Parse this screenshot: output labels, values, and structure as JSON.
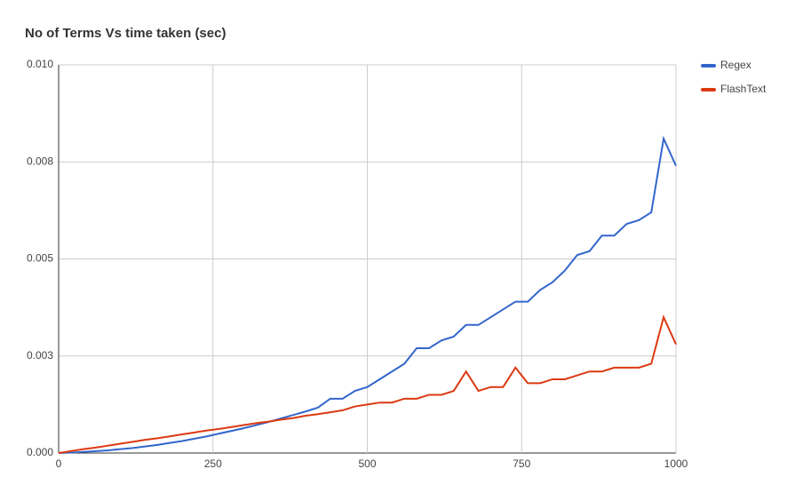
{
  "chart_data": {
    "type": "line",
    "title": "No of Terms Vs time taken (sec)",
    "x": [
      0,
      20,
      40,
      60,
      80,
      100,
      120,
      140,
      160,
      180,
      200,
      220,
      240,
      260,
      280,
      300,
      320,
      340,
      360,
      380,
      400,
      420,
      440,
      460,
      480,
      500,
      520,
      540,
      560,
      580,
      600,
      620,
      640,
      660,
      680,
      700,
      720,
      740,
      760,
      780,
      800,
      820,
      840,
      860,
      880,
      900,
      920,
      940,
      960,
      980,
      1000
    ],
    "series": [
      {
        "name": "Regex",
        "color": "#3366cc",
        "values": [
          0,
          1e-05,
          3e-05,
          5e-05,
          7e-05,
          0.0001,
          0.00013,
          0.00017,
          0.00021,
          0.00026,
          0.00031,
          0.00037,
          0.00043,
          0.0005,
          0.00057,
          0.00064,
          0.00072,
          0.0008,
          0.00089,
          0.00098,
          0.00107,
          0.00117,
          0.0014,
          0.0014,
          0.0016,
          0.0017,
          0.0019,
          0.0021,
          0.0023,
          0.0027,
          0.0027,
          0.0029,
          0.003,
          0.0033,
          0.0033,
          0.0035,
          0.0037,
          0.0039,
          0.0039,
          0.0042,
          0.0044,
          0.0047,
          0.0051,
          0.0052,
          0.0056,
          0.0056,
          0.0059,
          0.006,
          0.0062,
          0.0081,
          0.0074
        ]
      },
      {
        "name": "FlashText",
        "color": "#dc3912",
        "values": [
          0,
          5e-05,
          0.0001,
          0.00014,
          0.00019,
          0.00024,
          0.00029,
          0.00034,
          0.00038,
          0.00043,
          0.00048,
          0.00053,
          0.00058,
          0.00062,
          0.00067,
          0.00072,
          0.00077,
          0.00081,
          0.00086,
          0.0009,
          0.00096,
          0.001,
          0.00105,
          0.0011,
          0.0012,
          0.00125,
          0.0013,
          0.0013,
          0.0014,
          0.0014,
          0.0015,
          0.0015,
          0.0016,
          0.0021,
          0.0016,
          0.0017,
          0.0017,
          0.0022,
          0.0018,
          0.0018,
          0.0019,
          0.0019,
          0.002,
          0.0021,
          0.0021,
          0.0022,
          0.0022,
          0.0022,
          0.0023,
          0.0035,
          0.0028
        ]
      }
    ],
    "xlim": [
      0,
      1000
    ],
    "xticks": [
      0,
      250,
      500,
      750,
      1000
    ],
    "ylim": [
      0,
      0.01
    ],
    "yticks": [
      {
        "value": 0,
        "label": "0.000"
      },
      {
        "value": 0.0025,
        "label": "0.003"
      },
      0.005,
      {
        "value": 0.0075,
        "label": "0.008"
      },
      {
        "value": 0.01,
        "label": "0.010"
      }
    ],
    "grid": true,
    "legend": "right"
  }
}
